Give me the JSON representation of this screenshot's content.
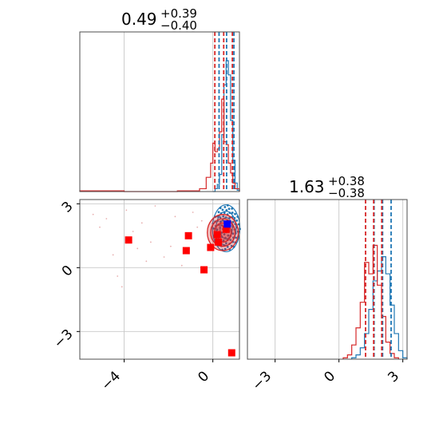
{
  "chart_data": [
    {
      "type": "histogram",
      "panel": "top-left",
      "title": {
        "value": "0.49",
        "plus": "+0.39",
        "minus": "−0.40"
      },
      "xlim": [
        -6.0,
        1.2
      ],
      "ylim": [
        0,
        1.0
      ],
      "grid": true,
      "colors": {
        "blue": "#1f77b4",
        "red": "#d62728"
      },
      "quantiles": {
        "red": [
          0.09,
          0.49,
          0.88
        ],
        "blue": [
          0.28,
          0.62,
          0.95
        ]
      },
      "series": [
        {
          "name": "",
          "color": "#1f77b4",
          "bins": [
            0.0,
            0.1,
            0.2,
            0.3,
            0.4,
            0.5,
            0.6,
            0.7,
            0.8,
            0.9,
            1.0,
            1.1,
            1.2
          ],
          "heights": [
            0.0,
            0.02,
            0.05,
            0.12,
            0.4,
            0.75,
            0.92,
            0.82,
            0.5,
            0.22,
            0.06,
            0.01
          ]
        },
        {
          "name": "",
          "color": "#d62728",
          "bins": [
            -6.0,
            -4.0,
            -1.6,
            -0.6,
            -0.3,
            -0.1,
            0.0,
            0.1,
            0.2,
            0.3,
            0.4,
            0.5,
            0.6,
            0.7,
            0.8,
            0.9,
            1.0,
            1.2
          ],
          "heights": [
            0.005,
            0.0,
            0.005,
            0.02,
            0.1,
            0.2,
            0.34,
            0.28,
            0.3,
            0.42,
            0.65,
            0.35,
            0.33,
            0.2,
            0.13,
            0.06,
            0.02
          ]
        }
      ]
    },
    {
      "type": "scatter",
      "panel": "bottom-left",
      "xlim": [
        -6.0,
        1.2
      ],
      "ylim": [
        -4.3,
        3.2
      ],
      "grid": true,
      "x_ticks": [
        {
          "value": -4,
          "label": "−4"
        },
        {
          "value": 0,
          "label": "0"
        }
      ],
      "y_ticks": [
        {
          "value": 3,
          "label": "3"
        },
        {
          "value": 0,
          "label": "0"
        },
        {
          "value": -3,
          "label": "−3"
        }
      ],
      "red_markers": [
        {
          "x": -3.8,
          "y": 1.3
        },
        {
          "x": -1.1,
          "y": 1.5
        },
        {
          "x": -1.2,
          "y": 0.8
        },
        {
          "x": -0.4,
          "y": -0.1
        },
        {
          "x": -0.1,
          "y": 0.95
        },
        {
          "x": 0.2,
          "y": 1.55
        },
        {
          "x": 0.25,
          "y": 1.2
        },
        {
          "x": 0.6,
          "y": 1.8
        },
        {
          "x": 0.85,
          "y": -4.0
        }
      ],
      "blue_marker": {
        "x": 0.65,
        "y": 2.05
      },
      "red_contours": [
        {
          "cx": 0.45,
          "cy": 1.65,
          "rx": 0.7,
          "ry": 0.85
        },
        {
          "cx": 0.45,
          "cy": 1.65,
          "rx": 0.55,
          "ry": 0.65
        },
        {
          "cx": 0.45,
          "cy": 1.65,
          "rx": 0.38,
          "ry": 0.45
        }
      ],
      "blue_contours": [
        {
          "cx": 0.6,
          "cy": 1.85,
          "rx": 0.62,
          "ry": 1.1
        },
        {
          "cx": 0.6,
          "cy": 1.85,
          "rx": 0.45,
          "ry": 0.8
        },
        {
          "cx": 0.6,
          "cy": 1.85,
          "rx": 0.28,
          "ry": 0.5
        }
      ],
      "faint_points": [
        {
          "x": -5.4,
          "y": 2.5
        },
        {
          "x": -5.1,
          "y": 1.9
        },
        {
          "x": -4.8,
          "y": 2.3
        },
        {
          "x": -4.5,
          "y": 0.6
        },
        {
          "x": -4.3,
          "y": -0.4
        },
        {
          "x": -4.1,
          "y": -0.9
        },
        {
          "x": -3.9,
          "y": 2.7
        },
        {
          "x": -3.6,
          "y": 1.7
        },
        {
          "x": -3.4,
          "y": 0.9
        },
        {
          "x": -3.2,
          "y": 2.1
        },
        {
          "x": -3.0,
          "y": 0.3
        },
        {
          "x": -2.8,
          "y": 1.2
        },
        {
          "x": -2.6,
          "y": 2.9
        },
        {
          "x": -2.2,
          "y": 0.5
        },
        {
          "x": -1.9,
          "y": 1.0
        },
        {
          "x": -1.7,
          "y": 2.4
        },
        {
          "x": -1.4,
          "y": 0.1
        },
        {
          "x": -0.9,
          "y": 2.6
        },
        {
          "x": -0.7,
          "y": 1.9
        },
        {
          "x": -0.5,
          "y": 2.2
        }
      ]
    },
    {
      "type": "histogram",
      "panel": "bottom-right",
      "title": {
        "value": "1.63",
        "plus": "+0.38",
        "minus": "−0.38"
      },
      "xlim": [
        -4.3,
        3.2
      ],
      "ylim": [
        0,
        1.0
      ],
      "grid": true,
      "x_ticks": [
        {
          "value": -3,
          "label": "−3"
        },
        {
          "value": 0,
          "label": "0"
        },
        {
          "value": 3,
          "label": "3"
        }
      ],
      "quantiles": {
        "red": [
          1.25,
          1.63,
          2.01
        ],
        "blue": [
          1.65,
          2.05,
          2.45
        ]
      },
      "series": [
        {
          "name": "",
          "color": "#1f77b4",
          "bins": [
            0.6,
            0.8,
            1.0,
            1.2,
            1.4,
            1.6,
            1.8,
            2.0,
            2.2,
            2.4,
            2.6,
            2.8,
            3.0,
            3.2
          ],
          "heights": [
            0.01,
            0.03,
            0.08,
            0.18,
            0.35,
            0.55,
            0.62,
            0.72,
            0.6,
            0.38,
            0.18,
            0.06,
            0.01
          ]
        },
        {
          "name": "",
          "color": "#d62728",
          "bins": [
            0.2,
            0.4,
            0.6,
            0.8,
            1.0,
            1.2,
            1.4,
            1.6,
            1.8,
            2.0,
            2.2,
            2.4,
            2.6,
            2.8
          ],
          "heights": [
            0.01,
            0.03,
            0.1,
            0.22,
            0.4,
            0.68,
            0.6,
            0.8,
            0.52,
            0.3,
            0.12,
            0.04,
            0.01
          ]
        }
      ]
    }
  ]
}
